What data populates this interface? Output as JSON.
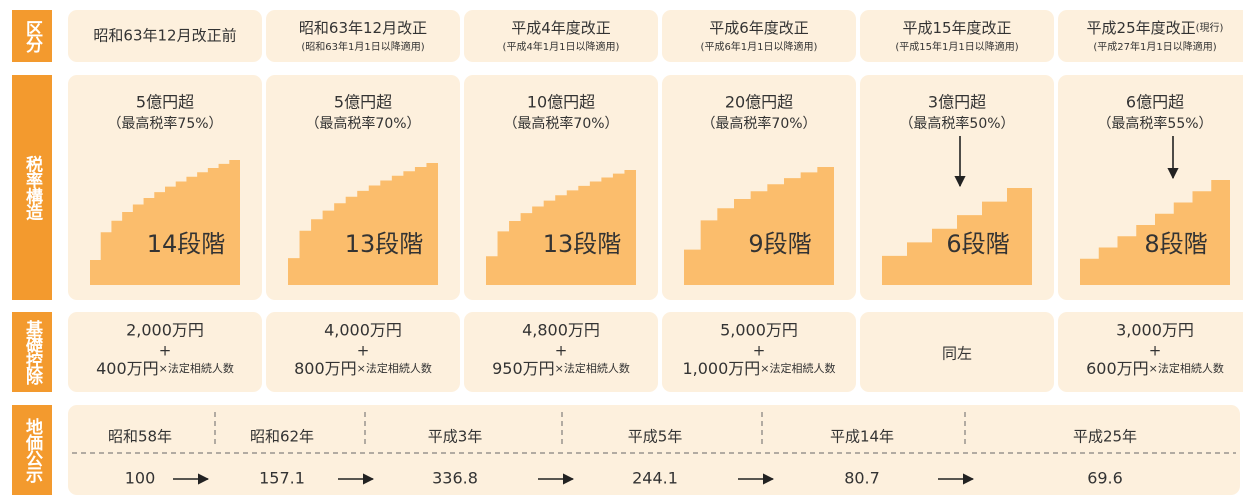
{
  "row_labels": [
    "区分",
    "税率構造",
    "基礎控除",
    "地価公示"
  ],
  "columns": [
    {
      "title": "昭和63年12月改正前",
      "top_bracket": "5億円超",
      "top_rate": "（最高税率75%）",
      "steps": 14,
      "steps_label": "14段階",
      "deduction": [
        "2,000万円",
        "+",
        "400万円",
        "×法定相続人数"
      ]
    },
    {
      "title": "昭和63年12月改正",
      "period": "(昭和63年1月1日以降適用)",
      "top_bracket": "5億円超",
      "top_rate": "（最高税率70%）",
      "steps": 13,
      "steps_label": "13段階",
      "deduction": [
        "4,000万円",
        "+",
        "800万円",
        "×法定相続人数"
      ]
    },
    {
      "title": "平成4年度改正",
      "period": "(平成4年1月1日以降適用)",
      "top_bracket": "10億円超",
      "top_rate": "（最高税率70%）",
      "steps": 13,
      "steps_label": "13段階",
      "deduction": [
        "4,800万円",
        "+",
        "950万円",
        "×法定相続人数"
      ]
    },
    {
      "title": "平成6年度改正",
      "period": "(平成6年1月1日以降適用)",
      "top_bracket": "20億円超",
      "top_rate": "（最高税率70%）",
      "steps": 9,
      "steps_label": "9段階",
      "deduction": [
        "5,000万円",
        "+",
        "1,000万円",
        "×法定相続人数"
      ]
    },
    {
      "title": "平成15年度改正",
      "period": "(平成15年1月1日以降適用)",
      "top_bracket": "3億円超",
      "top_rate": "（最高税率50%）",
      "steps": 6,
      "steps_label": "6段階",
      "deduction_same": "同左"
    },
    {
      "title": "平成25年度改正",
      "note": "(現行)",
      "period": "(平成27年1月1日以降適用)",
      "top_bracket": "6億円超",
      "top_rate": "（最高税率55%）",
      "steps": 8,
      "steps_label": "8段階",
      "deduction": [
        "3,000万円",
        "+",
        "600万円",
        "×法定相続人数"
      ]
    }
  ],
  "land_price": {
    "years": [
      "昭和58年",
      "昭和62年",
      "平成3年",
      "平成5年",
      "平成14年",
      "平成25年"
    ],
    "values": [
      100,
      157.1,
      336.8,
      244.1,
      80.7,
      69.6
    ]
  }
}
